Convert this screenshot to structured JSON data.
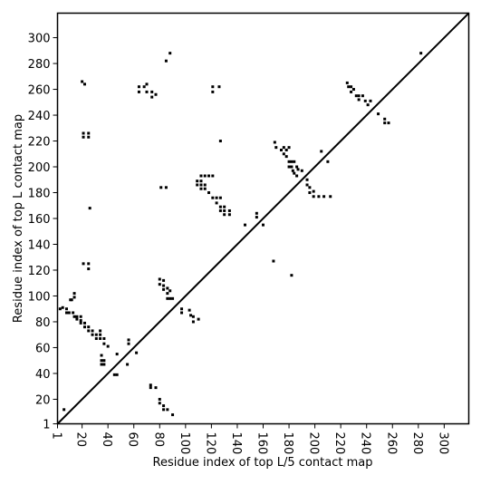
{
  "chart_data": {
    "type": "scatter",
    "xlabel": "Residue index of top L/5 contact map",
    "ylabel": "Residue index of top L contact map",
    "xlim": [
      1,
      319
    ],
    "ylim": [
      1,
      319
    ],
    "xticks": [
      1,
      20,
      40,
      60,
      80,
      100,
      120,
      140,
      160,
      180,
      200,
      220,
      240,
      260,
      280,
      300
    ],
    "yticks": [
      1,
      20,
      40,
      60,
      80,
      100,
      120,
      140,
      160,
      180,
      200,
      220,
      240,
      260,
      280,
      300
    ],
    "diagonal": true,
    "series": [
      {
        "color": "#000000",
        "x": [
          20,
          22,
          21,
          25,
          21,
          25,
          26,
          21,
          25,
          25,
          3,
          5,
          8,
          8,
          10,
          11,
          12,
          14,
          14,
          13,
          14,
          16,
          16,
          19,
          19,
          19,
          22,
          22,
          25,
          25,
          28,
          28,
          31,
          31,
          34,
          34,
          34,
          37,
          37,
          40,
          35,
          35,
          37,
          37,
          35,
          45,
          47,
          47,
          55,
          56,
          56,
          62,
          64,
          64,
          68,
          70,
          70,
          74,
          74,
          77,
          88,
          85,
          81,
          85,
          80,
          80,
          83,
          83,
          83,
          86,
          86,
          88,
          88,
          86,
          90,
          97,
          97,
          103,
          104,
          106,
          106,
          110,
          73,
          73,
          77,
          80,
          80,
          83,
          83,
          86,
          90,
          6,
          121,
          121,
          126,
          127,
          109,
          109,
          112,
          112,
          112,
          112,
          115,
          115,
          115,
          118,
          118,
          121,
          121,
          124,
          124,
          127,
          127,
          127,
          130,
          130,
          130,
          134,
          134,
          146,
          155,
          155,
          160,
          168,
          182,
          169,
          170,
          174,
          176,
          176,
          178,
          178,
          180,
          180,
          180,
          182,
          182,
          183,
          184,
          184,
          186,
          186,
          187,
          190,
          194,
          194,
          196,
          196,
          199,
          199,
          203,
          205,
          207,
          210,
          212,
          225,
          226,
          228,
          228,
          230,
          232,
          234,
          234,
          237,
          239,
          241,
          243,
          249,
          254,
          254,
          257,
          282
        ],
        "y": [
          266,
          264,
          226,
          226,
          223,
          223,
          168,
          125,
          125,
          121,
          90,
          91,
          90,
          87,
          87,
          97,
          97,
          102,
          99,
          87,
          84,
          84,
          82,
          84,
          81,
          79,
          79,
          76,
          76,
          73,
          73,
          70,
          70,
          67,
          67,
          73,
          70,
          67,
          63,
          61,
          54,
          50,
          50,
          47,
          47,
          39,
          39,
          55,
          47,
          63,
          66,
          56,
          262,
          258,
          262,
          264,
          258,
          258,
          254,
          256,
          288,
          282,
          184,
          184,
          113,
          109,
          112,
          108,
          105,
          106,
          102,
          104,
          98,
          98,
          98,
          90,
          87,
          89,
          85,
          84,
          80,
          82,
          31,
          29,
          29,
          20,
          17,
          15,
          12,
          12,
          8,
          12,
          262,
          258,
          262,
          220,
          189,
          186,
          193,
          189,
          186,
          183,
          193,
          186,
          183,
          193,
          180,
          193,
          176,
          176,
          172,
          176,
          169,
          166,
          169,
          166,
          163,
          166,
          163,
          155,
          161,
          164,
          155,
          127,
          116,
          219,
          215,
          213,
          215,
          210,
          213,
          208,
          215,
          204,
          200,
          204,
          200,
          197,
          204,
          195,
          200,
          193,
          198,
          197,
          190,
          186,
          184,
          180,
          181,
          177,
          177,
          212,
          177,
          204,
          177,
          265,
          262,
          262,
          258,
          260,
          255,
          255,
          252,
          255,
          251,
          248,
          251,
          241,
          237,
          234,
          234,
          288
        ]
      }
    ]
  }
}
